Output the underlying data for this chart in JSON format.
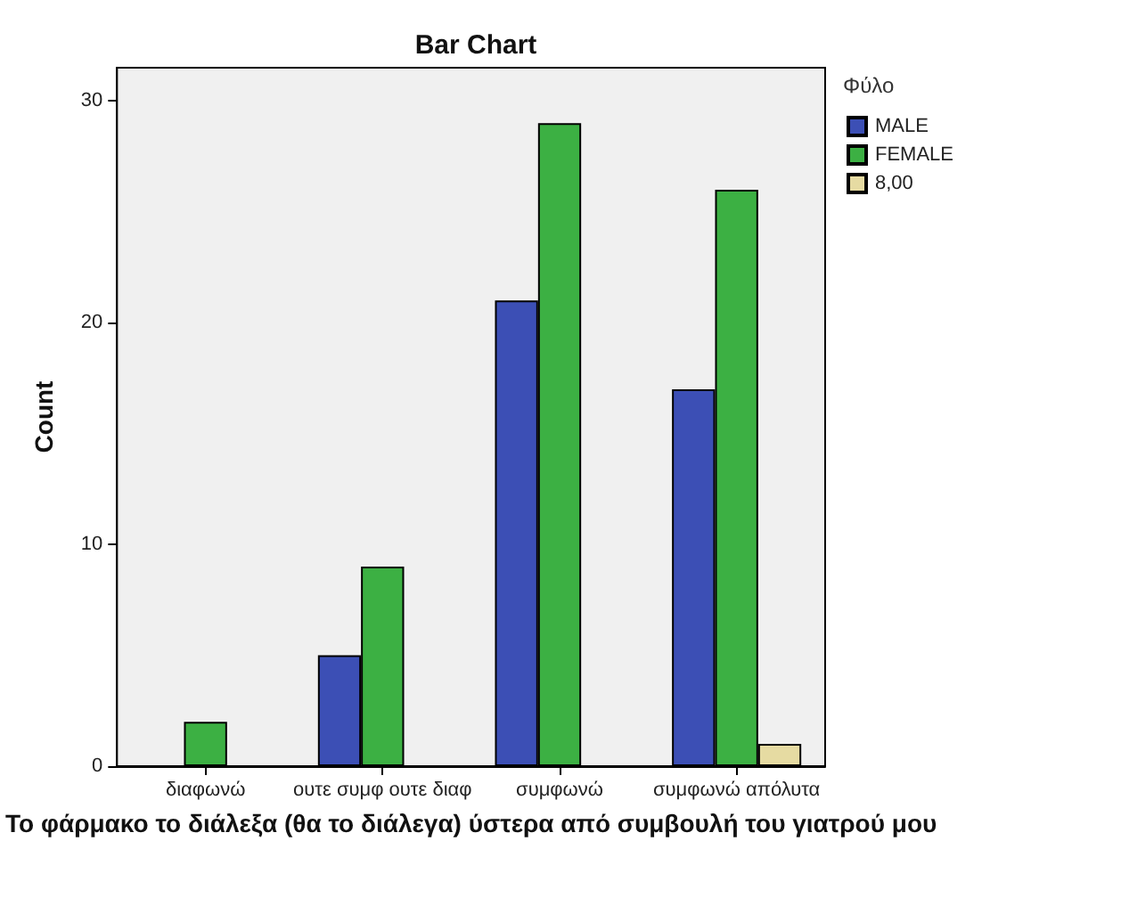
{
  "chart_data": {
    "type": "bar",
    "title": "Bar Chart",
    "xlabel": "Το φάρμακο το διάλεξα (θα το διάλεγα) ύστερα από συμβουλή του γιατρού μου",
    "ylabel": "Count",
    "legend_title": "Φύλο",
    "categories": [
      "διαφωνώ",
      "ουτε συμφ ουτε διαφ",
      "συμφωνώ",
      "συμφωνώ απόλυτα"
    ],
    "series": [
      {
        "name": "MALE",
        "color": "#3c4fb5",
        "values": [
          null,
          5,
          21,
          17
        ]
      },
      {
        "name": "FEMALE",
        "color": "#3cb043",
        "values": [
          2,
          9,
          29,
          26
        ]
      },
      {
        "name": "8,00",
        "color": "#e6dba2",
        "values": [
          null,
          null,
          null,
          1
        ]
      }
    ],
    "ylim": [
      0,
      31.5
    ],
    "yticks": [
      0,
      10,
      20,
      30
    ],
    "grid": false,
    "legend": "top right"
  }
}
